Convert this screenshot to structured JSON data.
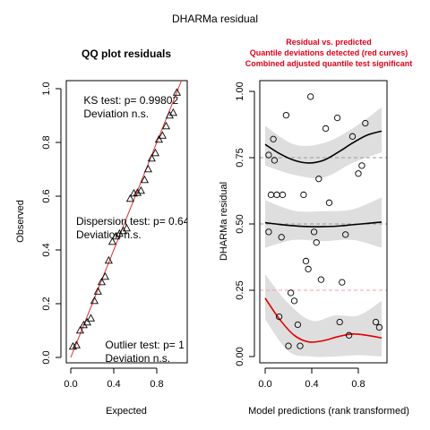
{
  "figure_title": "DHARMa residual",
  "chart_data": [
    {
      "type": "scatter",
      "title": "QQ plot residuals",
      "xlabel": "Expected",
      "ylabel": "Observed",
      "xlim": [
        0,
        1
      ],
      "ylim": [
        0,
        1
      ],
      "x_ticks": [
        "0.0",
        "0.4",
        "0.8"
      ],
      "y_ticks": [
        "0.0",
        "0.2",
        "0.4",
        "0.6",
        "0.8",
        "1.0"
      ],
      "reference_line": {
        "slope": 1,
        "intercept": 0,
        "color": "#e03030"
      },
      "marker": "triangle",
      "annotations": [
        {
          "lines": [
            "KS test: p= 0.99802",
            "Deviation  n.s."
          ],
          "at": [
            0.12,
            0.97
          ]
        },
        {
          "lines": [
            "Dispersion test: p= 0.64",
            "Deviation  n.s."
          ],
          "at": [
            0.05,
            0.52
          ]
        },
        {
          "lines": [
            "Outlier test: p= 1",
            "Deviation  n.s."
          ],
          "at": [
            0.32,
            0.06
          ]
        }
      ],
      "points": [
        [
          0.02,
          0.04
        ],
        [
          0.053,
          0.045
        ],
        [
          0.087,
          0.1
        ],
        [
          0.12,
          0.12
        ],
        [
          0.153,
          0.13
        ],
        [
          0.187,
          0.145
        ],
        [
          0.22,
          0.21
        ],
        [
          0.253,
          0.245
        ],
        [
          0.287,
          0.28
        ],
        [
          0.32,
          0.3
        ],
        [
          0.353,
          0.36
        ],
        [
          0.387,
          0.43
        ],
        [
          0.42,
          0.45
        ],
        [
          0.453,
          0.46
        ],
        [
          0.487,
          0.47
        ],
        [
          0.52,
          0.48
        ],
        [
          0.553,
          0.59
        ],
        [
          0.587,
          0.61
        ],
        [
          0.62,
          0.612
        ],
        [
          0.653,
          0.62
        ],
        [
          0.687,
          0.66
        ],
        [
          0.72,
          0.7
        ],
        [
          0.753,
          0.74
        ],
        [
          0.787,
          0.76
        ],
        [
          0.82,
          0.81
        ],
        [
          0.853,
          0.825
        ],
        [
          0.887,
          0.86
        ],
        [
          0.92,
          0.9
        ],
        [
          0.953,
          0.91
        ],
        [
          0.987,
          0.985
        ]
      ]
    },
    {
      "type": "scatter",
      "title_lines": [
        "Residual vs. predicted",
        "Quantile deviations detected (red curves)",
        "Combined adjusted quantile test significant"
      ],
      "title_color": "#e0001b",
      "xlabel": "Model predictions (rank transformed)",
      "ylabel": "DHARMa residual",
      "xlim": [
        0,
        1
      ],
      "ylim": [
        0,
        1
      ],
      "x_ticks": [
        "0.0",
        "0.4",
        "0.8"
      ],
      "y_ticks": [
        "0.00",
        "0.25",
        "0.50",
        "0.75",
        "1.00"
      ],
      "marker": "circle",
      "reference_lines": [
        {
          "y": 0.25,
          "color": "#ff9aa8"
        },
        {
          "y": 0.5,
          "color": "#999999"
        },
        {
          "y": 0.75,
          "color": "#999999"
        }
      ],
      "points": [
        [
          0.03,
          0.47
        ],
        [
          0.03,
          0.76
        ],
        [
          0.05,
          0.61
        ],
        [
          0.07,
          0.82
        ],
        [
          0.08,
          0.74
        ],
        [
          0.1,
          0.61
        ],
        [
          0.12,
          0.15
        ],
        [
          0.14,
          0.45
        ],
        [
          0.15,
          0.61
        ],
        [
          0.18,
          0.91
        ],
        [
          0.2,
          0.04
        ],
        [
          0.22,
          0.24
        ],
        [
          0.25,
          0.21
        ],
        [
          0.28,
          0.12
        ],
        [
          0.3,
          0.04
        ],
        [
          0.33,
          0.61
        ],
        [
          0.35,
          0.36
        ],
        [
          0.37,
          0.33
        ],
        [
          0.39,
          0.98
        ],
        [
          0.42,
          0.47
        ],
        [
          0.44,
          0.43
        ],
        [
          0.46,
          0.67
        ],
        [
          0.48,
          0.29
        ],
        [
          0.52,
          0.86
        ],
        [
          0.55,
          0.58
        ],
        [
          0.62,
          0.9
        ],
        [
          0.64,
          0.13
        ],
        [
          0.66,
          0.28
        ],
        [
          0.69,
          0.46
        ],
        [
          0.72,
          0.08
        ],
        [
          0.75,
          0.83
        ],
        [
          0.8,
          0.69
        ],
        [
          0.83,
          0.72
        ],
        [
          0.86,
          0.88
        ],
        [
          0.95,
          0.13
        ],
        [
          0.98,
          0.11
        ]
      ],
      "quantile_curves": [
        {
          "quantile": 0.75,
          "color": "#000000",
          "curve": [
            [
              0.0,
              0.8
            ],
            [
              0.125,
              0.765
            ],
            [
              0.25,
              0.74
            ],
            [
              0.375,
              0.73
            ],
            [
              0.5,
              0.74
            ],
            [
              0.625,
              0.77
            ],
            [
              0.75,
              0.805
            ],
            [
              0.875,
              0.835
            ],
            [
              1.0,
              0.85
            ]
          ],
          "band_upper": [
            [
              0.0,
              0.87
            ],
            [
              0.25,
              0.8
            ],
            [
              0.5,
              0.805
            ],
            [
              0.75,
              0.86
            ],
            [
              1.0,
              0.94
            ]
          ],
          "band_lower": [
            [
              0.0,
              0.72
            ],
            [
              0.25,
              0.685
            ],
            [
              0.5,
              0.675
            ],
            [
              0.75,
              0.73
            ],
            [
              1.0,
              0.77
            ]
          ]
        },
        {
          "quantile": 0.5,
          "color": "#000000",
          "curve": [
            [
              0.0,
              0.505
            ],
            [
              0.125,
              0.498
            ],
            [
              0.25,
              0.493
            ],
            [
              0.375,
              0.49
            ],
            [
              0.5,
              0.49
            ],
            [
              0.625,
              0.492
            ],
            [
              0.75,
              0.497
            ],
            [
              0.875,
              0.502
            ],
            [
              1.0,
              0.507
            ]
          ],
          "band_upper": [
            [
              0.0,
              0.59
            ],
            [
              0.25,
              0.55
            ],
            [
              0.5,
              0.548
            ],
            [
              0.75,
              0.555
            ],
            [
              1.0,
              0.6
            ]
          ],
          "band_lower": [
            [
              0.0,
              0.41
            ],
            [
              0.25,
              0.44
            ],
            [
              0.5,
              0.435
            ],
            [
              0.75,
              0.44
            ],
            [
              1.0,
              0.41
            ]
          ]
        },
        {
          "quantile": 0.25,
          "color": "#e00000",
          "curve": [
            [
              0.0,
              0.22
            ],
            [
              0.125,
              0.14
            ],
            [
              0.25,
              0.08
            ],
            [
              0.375,
              0.055
            ],
            [
              0.5,
              0.06
            ],
            [
              0.625,
              0.075
            ],
            [
              0.75,
              0.085
            ],
            [
              0.875,
              0.08
            ],
            [
              1.0,
              0.07
            ]
          ],
          "band_upper": [
            [
              0.0,
              0.31
            ],
            [
              0.2,
              0.2
            ],
            [
              0.4,
              0.135
            ],
            [
              0.6,
              0.155
            ],
            [
              0.8,
              0.155
            ],
            [
              1.0,
              0.21
            ]
          ],
          "band_lower": [
            [
              0.0,
              0.14
            ],
            [
              0.2,
              0.02
            ],
            [
              0.4,
              0.0
            ],
            [
              0.6,
              0.0
            ],
            [
              0.8,
              0.005
            ],
            [
              1.0,
              0.0
            ]
          ]
        }
      ]
    }
  ]
}
